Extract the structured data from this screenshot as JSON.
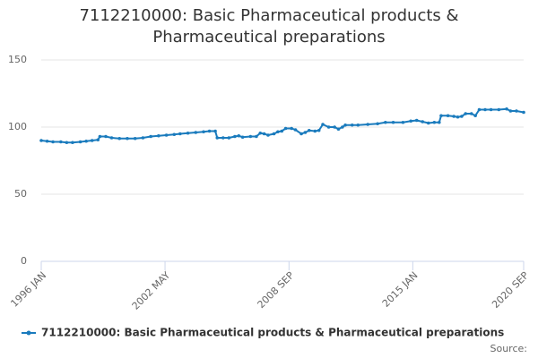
{
  "chart_data": {
    "type": "line",
    "title": "7112210000: Basic Pharmaceutical products & Pharmaceutical preparations",
    "source": "Source:",
    "series": [
      {
        "name": "7112210000: Basic Pharmaceutical products & Pharmaceutical preparations",
        "color": "#1a7bbd",
        "x": [
          1996.0,
          1996.3,
          1996.6,
          1997.0,
          1997.3,
          1997.6,
          1998.0,
          1998.3,
          1998.6,
          1998.9,
          1999.0,
          1999.3,
          1999.6,
          2000.0,
          2000.4,
          2000.8,
          2001.2,
          2001.6,
          2002.0,
          2002.4,
          2002.8,
          2003.1,
          2003.5,
          2003.9,
          2004.3,
          2004.6,
          2004.9,
          2005.0,
          2005.3,
          2005.6,
          2005.9,
          2006.1,
          2006.3,
          2006.7,
          2007.0,
          2007.2,
          2007.4,
          2007.6,
          2007.9,
          2008.1,
          2008.3,
          2008.5,
          2008.8,
          2009.0,
          2009.3,
          2009.5,
          2009.7,
          2010.0,
          2010.2,
          2010.4,
          2010.7,
          2011.0,
          2011.2,
          2011.4,
          2011.55,
          2011.9,
          2012.2,
          2012.7,
          2013.2,
          2013.6,
          2014.0,
          2014.5,
          2014.9,
          2015.2,
          2015.5,
          2015.8,
          2016.1,
          2016.35,
          2016.45,
          2016.8,
          2017.1,
          2017.3,
          2017.5,
          2017.7,
          2018.0,
          2018.2,
          2018.4,
          2018.7,
          2019.0,
          2019.4,
          2019.8,
          2020.0,
          2020.3,
          2020.67
        ],
        "values": [
          90,
          89.5,
          89,
          89,
          88.5,
          88.5,
          89,
          89.5,
          90,
          90.5,
          93,
          93,
          92,
          91.5,
          91.5,
          91.5,
          92,
          93,
          93.5,
          94,
          94.5,
          95,
          95.5,
          96,
          96.5,
          97,
          97,
          92,
          92,
          92,
          93,
          93.5,
          92.5,
          93,
          93,
          95.5,
          95,
          94,
          95,
          96.5,
          97,
          99,
          99,
          98,
          95,
          96,
          97.5,
          97,
          97.5,
          102,
          100,
          100,
          98.5,
          100,
          101.5,
          101.5,
          101.5,
          102,
          102.5,
          103.5,
          103.5,
          103.5,
          104.5,
          105,
          104,
          103,
          103.5,
          103.5,
          108.5,
          108.5,
          108,
          107.5,
          108,
          110,
          110,
          108.5,
          113,
          113,
          113,
          113,
          113.5,
          112,
          112,
          111
        ]
      }
    ],
    "xlim": [
      1996.0,
      2020.67
    ],
    "xticks": [
      {
        "value": 1996.0,
        "label": "1996 JAN"
      },
      {
        "value": 2002.33,
        "label": "2002 MAY"
      },
      {
        "value": 2008.67,
        "label": "2008 SEP"
      },
      {
        "value": 2015.0,
        "label": "2015 JAN"
      },
      {
        "value": 2020.67,
        "label": "2020 SEP"
      }
    ],
    "ylim": [
      0,
      150
    ],
    "yticks": [
      0,
      50,
      100,
      150
    ],
    "grid": true
  }
}
